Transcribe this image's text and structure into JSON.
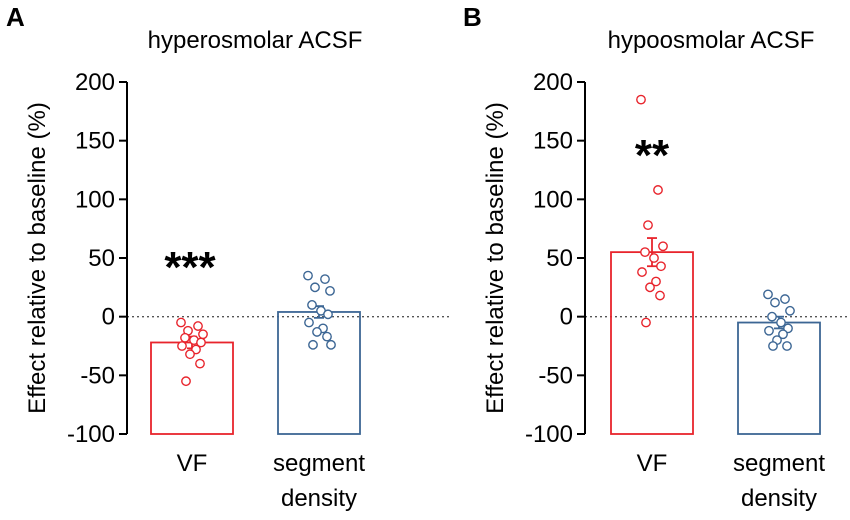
{
  "chart_data": [
    {
      "type": "bar",
      "panel_label": "A",
      "title": "hyperosmolar ACSF",
      "ylabel": "Effect relative to baseline (%)",
      "xlabel": "",
      "ylim": [
        -100,
        200
      ],
      "yticks": [
        "200",
        "150",
        "100",
        "50",
        "0",
        "-50",
        "-100"
      ],
      "ytick_values": [
        200,
        150,
        100,
        50,
        0,
        -50,
        -100
      ],
      "reference_line": 0,
      "categories": [
        {
          "label_lines": [
            "VF"
          ],
          "mean": -22,
          "sem": 5,
          "color": "#e8242c",
          "significance": "***",
          "points": [
            -5,
            -8,
            -12,
            -15,
            -18,
            -20,
            -22,
            -25,
            -28,
            -32,
            -40,
            -55
          ]
        },
        {
          "label_lines": [
            "segment",
            "density"
          ],
          "mean": 4,
          "sem": 5,
          "color": "#3c6694",
          "significance": "",
          "points": [
            35,
            32,
            25,
            22,
            10,
            5,
            2,
            -5,
            -10,
            -13,
            -17,
            -24,
            -24
          ]
        }
      ]
    },
    {
      "type": "bar",
      "panel_label": "B",
      "title": "hypoosmolar ACSF",
      "ylabel": "Effect relative to baseline (%)",
      "xlabel": "",
      "ylim": [
        -100,
        200
      ],
      "yticks": [
        "200",
        "150",
        "100",
        "50",
        "0",
        "-50",
        "-100"
      ],
      "ytick_values": [
        200,
        150,
        100,
        50,
        0,
        -50,
        -100
      ],
      "reference_line": 0,
      "categories": [
        {
          "label_lines": [
            "VF"
          ],
          "mean": 55,
          "sem": 12,
          "color": "#e8242c",
          "significance": "**",
          "points": [
            185,
            108,
            78,
            60,
            55,
            50,
            43,
            38,
            30,
            25,
            18,
            -5
          ]
        },
        {
          "label_lines": [
            "segment",
            "density"
          ],
          "mean": -5,
          "sem": 5,
          "color": "#3c6694",
          "significance": "",
          "points": [
            19,
            15,
            12,
            5,
            0,
            -5,
            -10,
            -12,
            -15,
            -20,
            -25,
            -25
          ]
        }
      ]
    }
  ]
}
